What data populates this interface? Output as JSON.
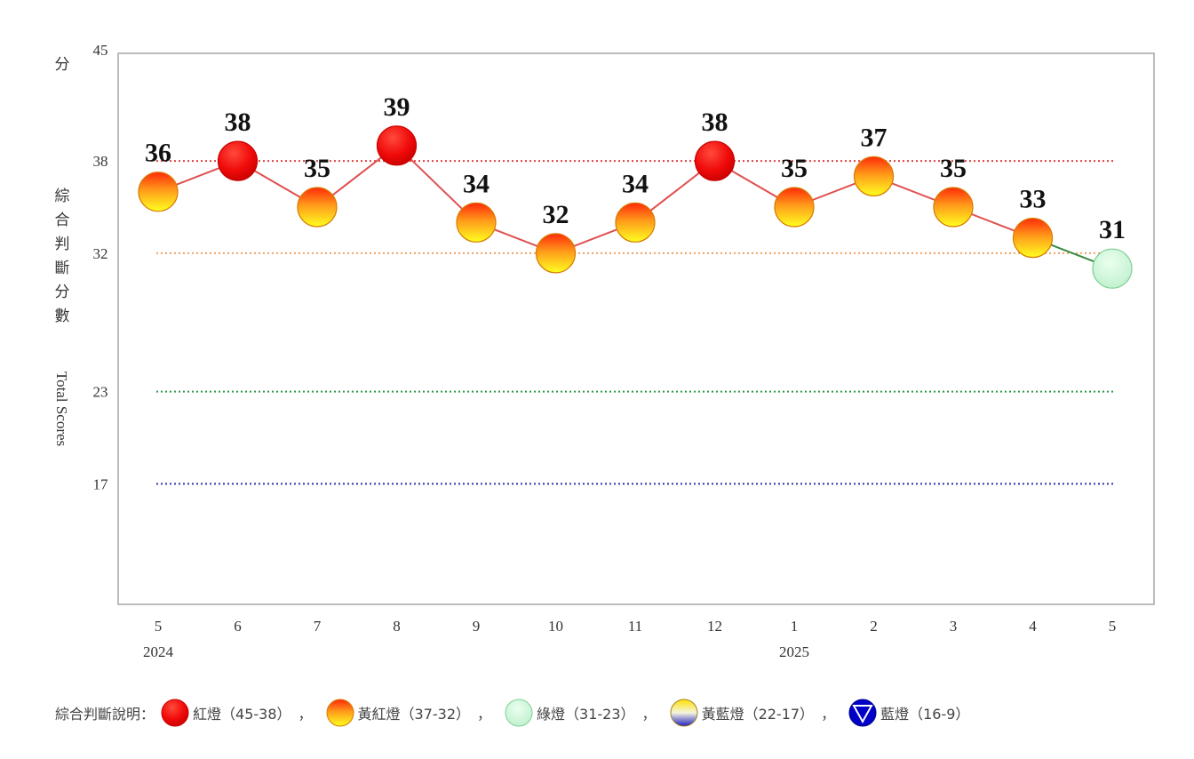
{
  "chart_data": {
    "type": "line",
    "x": [
      "5",
      "6",
      "7",
      "8",
      "9",
      "10",
      "11",
      "12",
      "1",
      "2",
      "3",
      "4",
      "5"
    ],
    "year_labels": [
      {
        "at_index": 0,
        "text": "2024"
      },
      {
        "at_index": 8,
        "text": "2025"
      }
    ],
    "values": [
      36,
      38,
      35,
      39,
      34,
      32,
      34,
      38,
      35,
      37,
      35,
      33,
      31
    ],
    "point_signals": [
      "yellow-red",
      "red",
      "yellow-red",
      "red",
      "yellow-red",
      "yellow-red",
      "yellow-red",
      "red",
      "yellow-red",
      "yellow-red",
      "yellow-red",
      "yellow-red",
      "green"
    ],
    "ylim": [
      9,
      45
    ],
    "yticks": [
      {
        "value": 45,
        "label": "45"
      },
      {
        "value": 38,
        "label": "38"
      },
      {
        "value": 32,
        "label": "32"
      },
      {
        "value": 23,
        "label": "23"
      },
      {
        "value": 17,
        "label": "17"
      }
    ],
    "y_unit": "分",
    "ylabel_zh": "綜合判斷分數",
    "ylabel_en": "Total Scores",
    "threshold_lines": [
      {
        "value": 38,
        "color": "#e04040"
      },
      {
        "value": 32,
        "color": "#f0a060"
      },
      {
        "value": 23,
        "color": "#2e9a4a"
      },
      {
        "value": 17,
        "color": "#3030b0"
      }
    ],
    "line_colors": {
      "red_segment": "#e05050",
      "green_segment": "#3a8a40"
    },
    "grid": false
  },
  "legend": {
    "lead": "綜合判斷說明：",
    "items": [
      {
        "label": "紅燈（45-38）",
        "sep": "，",
        "signal": "red",
        "icon": "red-light-icon"
      },
      {
        "label": "黃紅燈（37-32）",
        "sep": "，",
        "signal": "yellow-red",
        "icon": "yellow-red-light-icon"
      },
      {
        "label": "綠燈（31-23）",
        "sep": "，",
        "signal": "green",
        "icon": "green-light-icon"
      },
      {
        "label": "黃藍燈（22-17）",
        "sep": "，",
        "signal": "yellow-blue",
        "icon": "yellow-blue-light-icon"
      },
      {
        "label": "藍燈（16-9）",
        "sep": "",
        "signal": "blue",
        "icon": "blue-light-icon"
      }
    ]
  }
}
